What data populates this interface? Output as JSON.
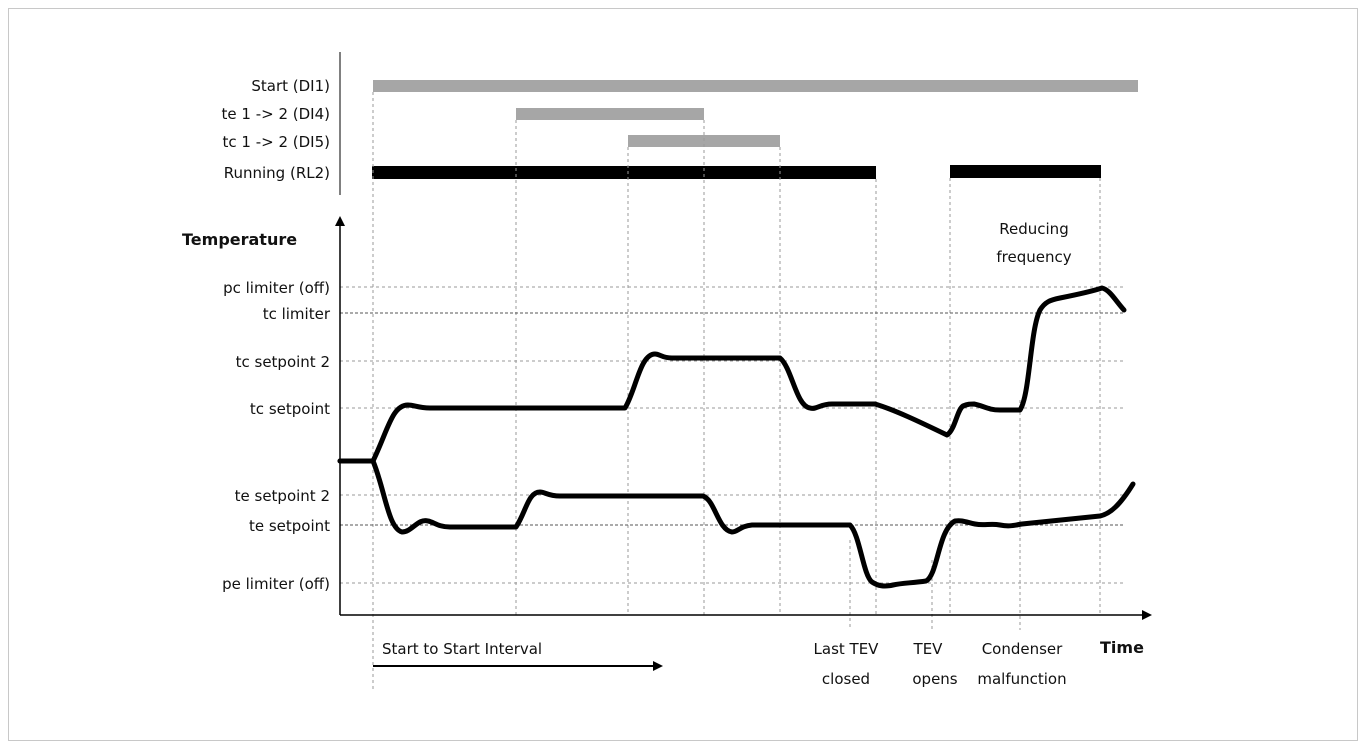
{
  "signals": [
    {
      "label": "Start (DI1)",
      "color": "#a6a6a6"
    },
    {
      "label": "te 1 -> 2 (DI4)",
      "color": "#a6a6a6"
    },
    {
      "label": "tc 1 -> 2 (DI5)",
      "color": "#a6a6a6"
    },
    {
      "label": "Running (RL2)",
      "color": "#000000"
    }
  ],
  "axis": {
    "y_label": "Temperature",
    "x_label": "Time"
  },
  "levels": [
    {
      "label": "pc limiter (off)"
    },
    {
      "label": "tc limiter"
    },
    {
      "label": "tc setpoint 2"
    },
    {
      "label": "tc setpoint"
    },
    {
      "label": "te setpoint 2"
    },
    {
      "label": "te setpoint"
    },
    {
      "label": "pe limiter (off)"
    }
  ],
  "annotations": {
    "reducing_frequency_line1": "Reducing",
    "reducing_frequency_line2": "frequency",
    "start_interval": "Start to Start Interval",
    "last_tev_line1": "Last TEV",
    "last_tev_line2": "closed",
    "tev_opens_line1": "TEV",
    "tev_opens_line2": "opens",
    "condenser_line1": "Condenser",
    "condenser_line2": "malfunction"
  }
}
